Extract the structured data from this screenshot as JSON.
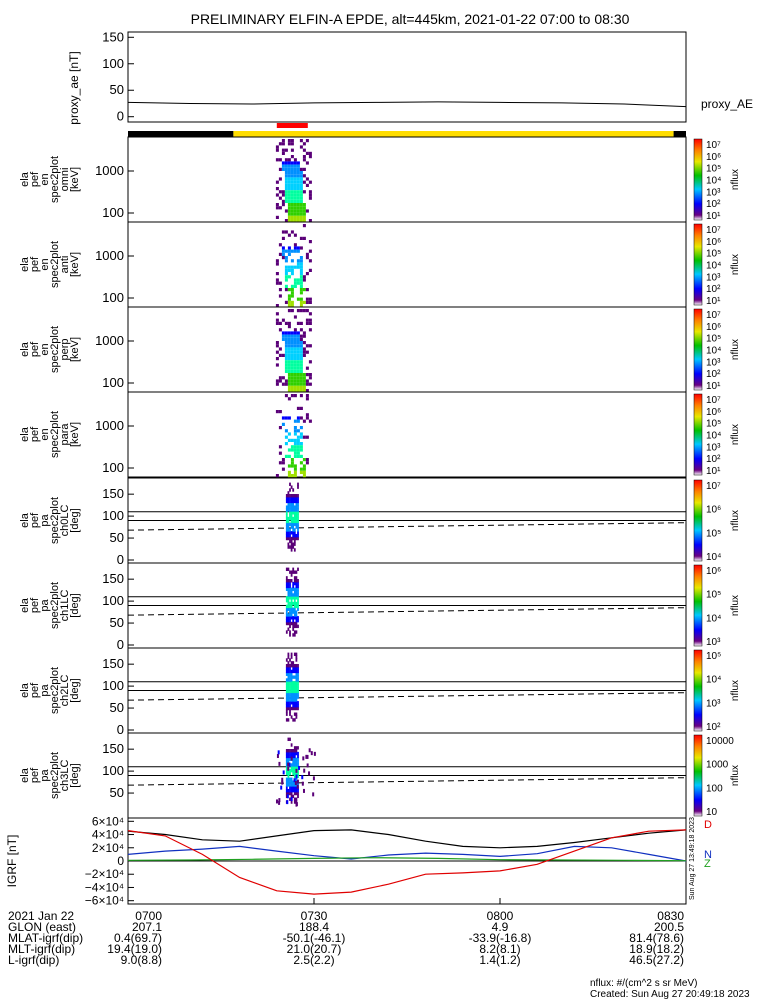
{
  "chart_data": {
    "type": "stacked-spectrogram",
    "title": "PRELIMINARY ELFIN-A EPDE, alt=445km, 2021-01-22 07:00 to 08:30",
    "time_range": [
      "07:00",
      "08:30"
    ],
    "x_ticks": [
      {
        "t": 0,
        "label": "0700"
      },
      {
        "t": 30,
        "label": "0730"
      },
      {
        "t": 60,
        "label": "0800"
      },
      {
        "t": 90,
        "label": "0830"
      }
    ],
    "status_bar": [
      {
        "start": 0,
        "end": 17,
        "color": "#000000"
      },
      {
        "start": 17,
        "end": 88,
        "color": "#ffdd00"
      },
      {
        "start": 88,
        "end": 90,
        "color": "#000000"
      }
    ],
    "science_zone": {
      "start": 24,
      "end": 29,
      "color": "#ff0000"
    },
    "event_time": [
      24.5,
      26.5
    ],
    "proxy_ae": {
      "ylabel": "proxy_ae [nT]",
      "legend": "proxy_AE",
      "ylim": [
        -10,
        160
      ],
      "yticks": [
        "0",
        "50",
        "100",
        "150"
      ],
      "x": [
        0,
        10,
        20,
        30,
        40,
        50,
        60,
        70,
        80,
        90
      ],
      "values": [
        27,
        25,
        24,
        26,
        27,
        28,
        27,
        26,
        24,
        19
      ]
    },
    "energy_panels": [
      {
        "ylabel": [
          "ela",
          "pef",
          "en",
          "spec2plot",
          "omni",
          "[keV]"
        ],
        "yticks": [
          "100",
          "1000"
        ],
        "cb_labels": [
          "10⁷",
          "10⁶",
          "10⁵",
          "10⁴",
          "10³",
          "10²",
          "10¹"
        ],
        "cb_unit": "nflux"
      },
      {
        "ylabel": [
          "ela",
          "pef",
          "en",
          "spec2plot",
          "anti",
          "[keV]"
        ],
        "yticks": [
          "100",
          "1000"
        ],
        "cb_labels": [
          "10⁷",
          "10⁶",
          "10⁵",
          "10⁴",
          "10³",
          "10²",
          "10¹"
        ],
        "cb_unit": "nflux"
      },
      {
        "ylabel": [
          "ela",
          "pef",
          "en",
          "spec2plot",
          "perp",
          "[keV]"
        ],
        "yticks": [
          "100",
          "1000"
        ],
        "cb_labels": [
          "10⁷",
          "10⁶",
          "10⁵",
          "10⁴",
          "10³",
          "10²",
          "10¹"
        ],
        "cb_unit": "nflux"
      },
      {
        "ylabel": [
          "ela",
          "pef",
          "en",
          "spec2plot",
          "para",
          "[keV]"
        ],
        "yticks": [
          "100",
          "1000"
        ],
        "cb_labels": [
          "10⁷",
          "10⁶",
          "10⁵",
          "10⁴",
          "10³",
          "10²",
          "10¹"
        ],
        "cb_unit": "nflux"
      }
    ],
    "pitch_panels": [
      {
        "ylabel": [
          "ela",
          "pef",
          "pa",
          "spec2plot",
          "ch0LC",
          "[deg]"
        ],
        "yticks": [
          "0",
          "50",
          "100",
          "150"
        ],
        "cb_labels": [
          "10⁷",
          "10⁶",
          "10⁵",
          "10⁴"
        ],
        "cb_unit": "nflux"
      },
      {
        "ylabel": [
          "ela",
          "pef",
          "pa",
          "spec2plot",
          "ch1LC",
          "[deg]"
        ],
        "yticks": [
          "0",
          "50",
          "100",
          "150"
        ],
        "cb_labels": [
          "10⁶",
          "10⁵",
          "10⁴",
          "10³"
        ],
        "cb_unit": "nflux"
      },
      {
        "ylabel": [
          "ela",
          "pef",
          "pa",
          "spec2plot",
          "ch2LC",
          "[deg]"
        ],
        "yticks": [
          "0",
          "50",
          "100",
          "150"
        ],
        "cb_labels": [
          "10⁵",
          "10⁴",
          "10³",
          "10²"
        ],
        "cb_unit": "nflux"
      },
      {
        "ylabel": [
          "ela",
          "pef",
          "pa",
          "spec2plot",
          "ch3LC",
          "[deg]"
        ],
        "yticks": [
          "50",
          "100",
          "150"
        ],
        "cb_labels": [
          "10000",
          "1000",
          "100",
          "10"
        ],
        "cb_unit": "nflux"
      }
    ],
    "loss_cone": {
      "ref_lines": [
        90,
        110,
        110
      ],
      "lc_start": 68,
      "lc_end": 85
    },
    "igrf": {
      "ylabel": "IGRF [nT]",
      "ylim": [
        -65000,
        65000
      ],
      "yticks": [
        "6×10⁴",
        "4×10⁴",
        "2×10⁴",
        "0",
        "−2×10⁴",
        "−4×10⁴",
        "−6×10⁴"
      ],
      "legend": [
        "D",
        "N",
        "Z"
      ],
      "series": [
        {
          "name": "black",
          "color": "#000000",
          "x": [
            0,
            6,
            12,
            18,
            24,
            30,
            36,
            42,
            48,
            54,
            60,
            66,
            72,
            78,
            84,
            90
          ],
          "values": [
            45000,
            40000,
            32000,
            30000,
            38000,
            46000,
            47000,
            40000,
            30000,
            22000,
            20000,
            22000,
            28000,
            35000,
            42000,
            47000
          ]
        },
        {
          "name": "blue",
          "color": "#1030c0",
          "x": [
            0,
            6,
            12,
            18,
            24,
            30,
            36,
            42,
            48,
            54,
            60,
            66,
            72,
            78,
            84,
            90
          ],
          "values": [
            10000,
            15000,
            18000,
            22000,
            15000,
            8000,
            3000,
            9000,
            12000,
            10000,
            7000,
            11000,
            22000,
            20000,
            10000,
            0
          ]
        },
        {
          "name": "green",
          "color": "#20a020",
          "x": [
            0,
            10,
            20,
            30,
            40,
            50,
            60,
            70,
            80,
            90
          ],
          "values": [
            1000,
            1500,
            2500,
            4000,
            5000,
            4000,
            2000,
            1500,
            1000,
            500
          ]
        },
        {
          "name": "red",
          "color": "#e00000",
          "x": [
            0,
            6,
            12,
            18,
            24,
            30,
            36,
            42,
            48,
            54,
            60,
            66,
            72,
            78,
            84,
            90
          ],
          "values": [
            46000,
            38000,
            10000,
            -25000,
            -45000,
            -50000,
            -47000,
            -35000,
            -20000,
            -18000,
            -15000,
            -5000,
            15000,
            35000,
            45000,
            47000
          ]
        }
      ]
    }
  },
  "ephemeris": {
    "rows": [
      {
        "label": "2021 Jan 22",
        "values": [
          "0700",
          "0730",
          "0800",
          "0830"
        ]
      },
      {
        "label": "GLON (east)",
        "values": [
          "207.1",
          "188.4",
          "4.9",
          "200.5"
        ]
      },
      {
        "label": "MLAT-igrf(dip)",
        "values": [
          "0.4(69.7)",
          "-50.1(-46.1)",
          "-33.9(-16.8)",
          "81.4(78.6)"
        ]
      },
      {
        "label": "MLT-igrf(dip)",
        "values": [
          "19.4(19.0)",
          "21.0(20.7)",
          "8.2(8.1)",
          "18.9(18.2)"
        ]
      },
      {
        "label": "L-igrf(dip)",
        "values": [
          "9.0(8.8)",
          "2.5(2.2)",
          "1.4(1.2)",
          "46.5(27.2)"
        ]
      }
    ]
  },
  "footer": {
    "units": "nflux: #/(cm^2 s sr MeV)",
    "created": "Created: Sun Aug 27 20:49:18 2023",
    "side_stamp": "Sun Aug 27 13:49:18 2023"
  },
  "colors": {
    "accent_yellow": "#ffdd00",
    "accent_red": "#ff0000"
  }
}
